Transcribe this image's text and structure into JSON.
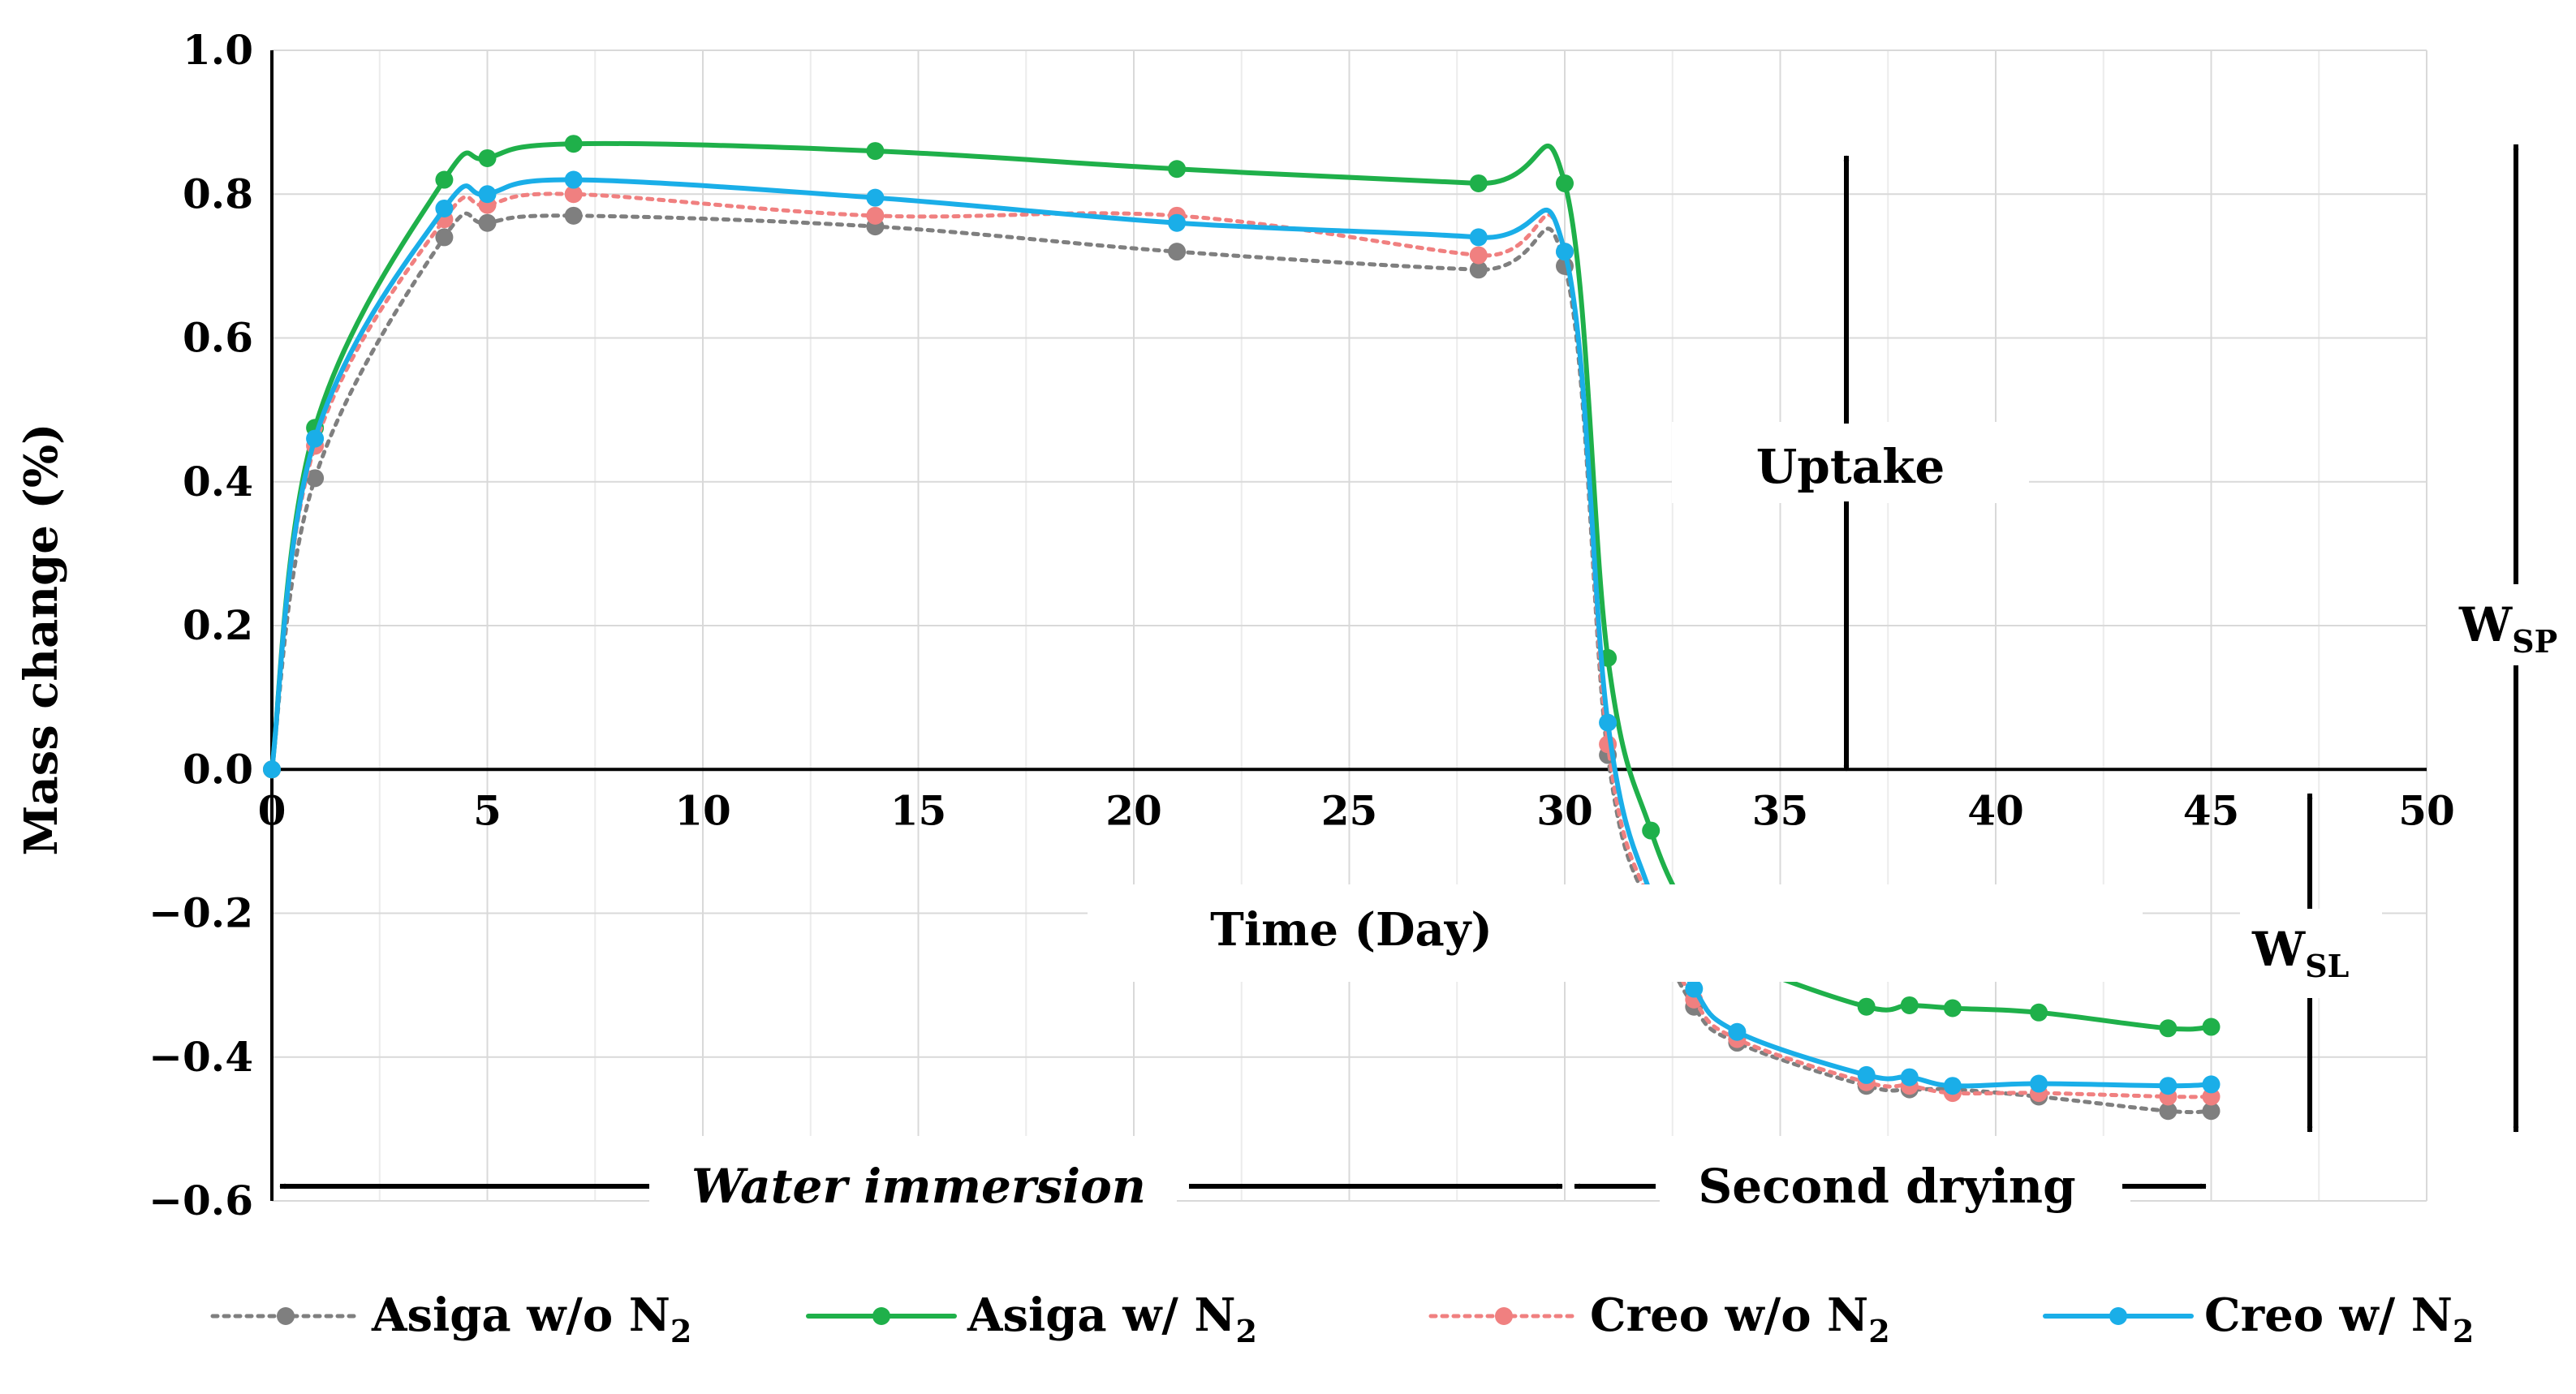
{
  "chart_data": {
    "type": "line",
    "title": "",
    "xlabel": "Time (Day)",
    "ylabel": "Mass change (%)",
    "xlim": [
      0,
      50
    ],
    "ylim": [
      -0.6,
      1.0
    ],
    "x_ticks": [
      "0",
      "5",
      "10",
      "15",
      "20",
      "25",
      "30",
      "35",
      "40",
      "45",
      "50"
    ],
    "y_ticks": [
      "1.0",
      "0.8",
      "0.6",
      "0.4",
      "0.2",
      "0.0",
      "−0.2",
      "−0.4",
      "−0.6"
    ],
    "grid": true,
    "legend_position": "bottom",
    "series": [
      {
        "name": "Asiga w/o N",
        "name_sub": "2",
        "color": "#7f7f7f",
        "style": "dotted",
        "x": [
          0,
          1,
          4,
          5,
          7,
          14,
          21,
          28,
          30,
          31,
          32,
          33,
          34,
          37,
          38,
          39,
          41,
          44,
          45
        ],
        "y": [
          0.0,
          0.405,
          0.74,
          0.76,
          0.77,
          0.755,
          0.72,
          0.695,
          0.7,
          0.02,
          -0.2,
          -0.33,
          -0.38,
          -0.44,
          -0.445,
          -0.445,
          -0.455,
          -0.475,
          -0.475
        ]
      },
      {
        "name": "Asiga w/ N",
        "name_sub": "2",
        "color": "#1fb04a",
        "style": "solid",
        "x": [
          0,
          1,
          4,
          5,
          7,
          14,
          21,
          28,
          30,
          31,
          32,
          33,
          34,
          37,
          38,
          39,
          41,
          44,
          45
        ],
        "y": [
          0.0,
          0.475,
          0.82,
          0.85,
          0.87,
          0.86,
          0.835,
          0.815,
          0.815,
          0.155,
          -0.085,
          -0.21,
          -0.265,
          -0.33,
          -0.328,
          -0.332,
          -0.338,
          -0.36,
          -0.358
        ]
      },
      {
        "name": "Creo w/o N",
        "name_sub": "2",
        "color": "#f08080",
        "style": "dotted",
        "x": [
          0,
          1,
          4,
          5,
          7,
          14,
          21,
          28,
          30,
          31,
          32,
          33,
          34,
          37,
          38,
          39,
          41,
          44,
          45
        ],
        "y": [
          0.0,
          0.45,
          0.765,
          0.785,
          0.8,
          0.77,
          0.77,
          0.715,
          0.72,
          0.035,
          -0.19,
          -0.32,
          -0.375,
          -0.435,
          -0.44,
          -0.45,
          -0.45,
          -0.455,
          -0.455
        ]
      },
      {
        "name": "Creo w/ N",
        "name_sub": "2",
        "color": "#1aaee8",
        "style": "solid",
        "x": [
          0,
          1,
          4,
          5,
          7,
          14,
          21,
          28,
          30,
          31,
          32,
          33,
          34,
          37,
          38,
          39,
          41,
          44,
          45
        ],
        "y": [
          0.0,
          0.46,
          0.78,
          0.8,
          0.82,
          0.795,
          0.76,
          0.74,
          0.72,
          0.065,
          -0.175,
          -0.305,
          -0.365,
          -0.425,
          -0.428,
          -0.44,
          -0.437,
          -0.44,
          -0.438
        ]
      }
    ],
    "annotations": {
      "uptake": "Uptake",
      "water_immersion": "Water immersion",
      "second_drying": "Second drying",
      "wsp_main": "W",
      "wsp_sub": "SP",
      "wsl_main": "W",
      "wsl_sub": "SL"
    }
  }
}
